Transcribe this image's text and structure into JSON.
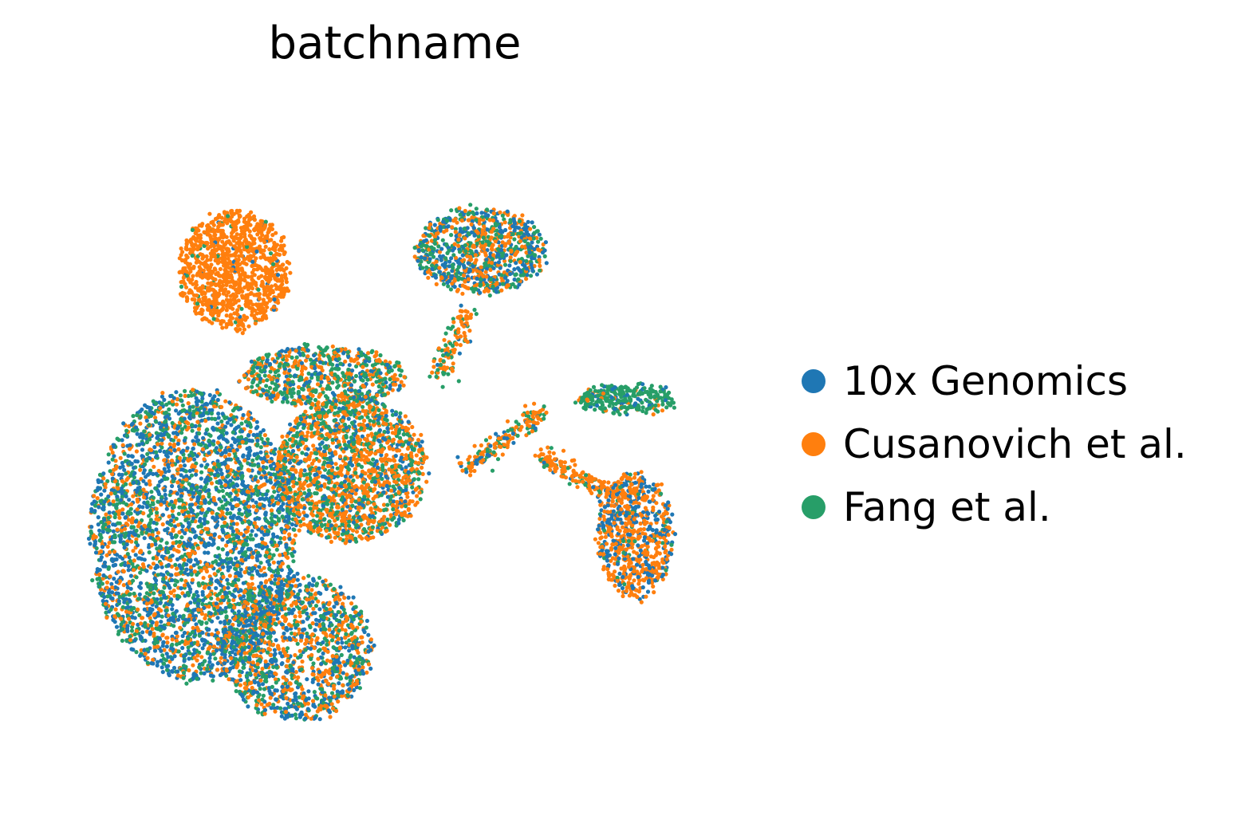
{
  "chart_data": {
    "type": "scatter",
    "title": "batchname",
    "xlabel": "",
    "ylabel": "",
    "axes_visible": false,
    "grid": false,
    "legend_position": "right",
    "xlim": [
      0,
      10
    ],
    "ylim": [
      0,
      10
    ],
    "series": [
      {
        "name": "10x Genomics",
        "color": "#1f77b4"
      },
      {
        "name": "Cusanovich et al.",
        "color": "#ff7f0e"
      },
      {
        "name": "Fang et al.",
        "color": "#279e68"
      }
    ],
    "clusters": [
      {
        "region": "upper-left blob",
        "shape": "ellipse",
        "cx": 2.6,
        "cy": 7.6,
        "rx": 0.8,
        "ry": 0.9,
        "weights": [
          0.02,
          0.95,
          0.03
        ],
        "count": 1100
      },
      {
        "region": "top-middle blob",
        "shape": "ellipse",
        "cx": 6.2,
        "cy": 7.9,
        "rx": 0.95,
        "ry": 0.65,
        "weights": [
          0.35,
          0.35,
          0.3
        ],
        "count": 900
      },
      {
        "region": "right small blob",
        "shape": "ellipse",
        "cx": 8.3,
        "cy": 5.65,
        "rx": 0.72,
        "ry": 0.23,
        "weights": [
          0.12,
          0.1,
          0.78
        ],
        "count": 280
      },
      {
        "region": "lower-right blob",
        "shape": "ellipse",
        "cx": 8.45,
        "cy": 3.6,
        "rx": 0.55,
        "ry": 0.95,
        "weights": [
          0.35,
          0.6,
          0.05
        ],
        "count": 750
      },
      {
        "region": "main mass left",
        "shape": "ellipse",
        "cx": 2.0,
        "cy": 3.6,
        "rx": 1.5,
        "ry": 2.2,
        "weights": [
          0.45,
          0.25,
          0.3
        ],
        "count": 3400
      },
      {
        "region": "main mass center",
        "shape": "ellipse",
        "cx": 4.3,
        "cy": 4.6,
        "rx": 1.1,
        "ry": 1.1,
        "weights": [
          0.2,
          0.5,
          0.3
        ],
        "count": 1700
      },
      {
        "region": "main mass lower",
        "shape": "ellipse",
        "cx": 3.5,
        "cy": 1.9,
        "rx": 1.1,
        "ry": 1.1,
        "weights": [
          0.35,
          0.35,
          0.3
        ],
        "count": 1300
      },
      {
        "region": "upper band",
        "shape": "ellipse",
        "cx": 3.9,
        "cy": 6.0,
        "rx": 1.2,
        "ry": 0.45,
        "weights": [
          0.2,
          0.35,
          0.45
        ],
        "count": 700
      },
      {
        "region": "bridge strand",
        "shape": "line",
        "x0": 6.0,
        "y0": 4.6,
        "x1": 7.1,
        "y1": 5.5,
        "w": 0.12,
        "weights": [
          0.1,
          0.55,
          0.35
        ],
        "count": 180
      },
      {
        "region": "descending strand",
        "shape": "line",
        "x0": 7.1,
        "y0": 4.8,
        "x1": 8.1,
        "y1": 4.2,
        "w": 0.12,
        "weights": [
          0.1,
          0.75,
          0.15
        ],
        "count": 160
      },
      {
        "region": "neck strand",
        "shape": "line",
        "x0": 5.6,
        "y0": 6.0,
        "x1": 6.0,
        "y1": 7.0,
        "w": 0.15,
        "weights": [
          0.05,
          0.6,
          0.35
        ],
        "count": 120
      }
    ]
  }
}
